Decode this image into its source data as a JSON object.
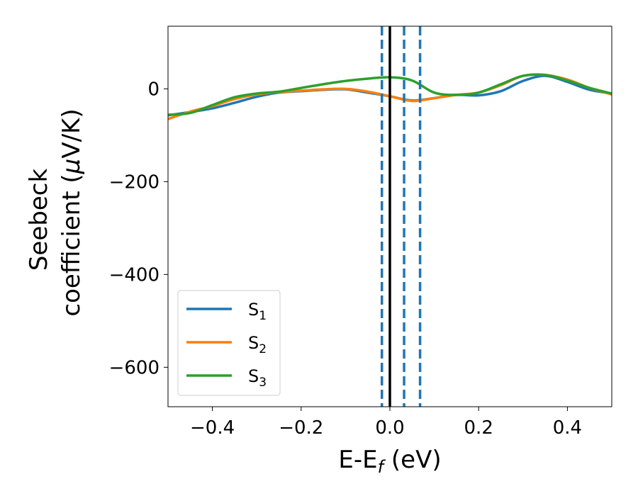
{
  "chart_data": {
    "type": "line",
    "title": "",
    "xlabel": {
      "main": "E-E",
      "sub": "f",
      "unit": " (eV)"
    },
    "ylabel": {
      "line1": "Seebeck",
      "line2": "coefficient  (",
      "mu": "μ",
      "unit": "V/K)"
    },
    "xlim": [
      -0.5,
      0.5
    ],
    "ylim": [
      -685,
      135
    ],
    "xticks": [
      {
        "value": -0.4,
        "label": "−0.4"
      },
      {
        "value": -0.2,
        "label": "−0.2"
      },
      {
        "value": 0.0,
        "label": "0.0"
      },
      {
        "value": 0.2,
        "label": "0.2"
      },
      {
        "value": 0.4,
        "label": "0.4"
      }
    ],
    "yticks": [
      {
        "value": 0,
        "label": "0"
      },
      {
        "value": -200,
        "label": "−200"
      },
      {
        "value": -400,
        "label": "−400"
      },
      {
        "value": -600,
        "label": "−600"
      }
    ],
    "grid": false,
    "legend_position": "lower-left",
    "series": [
      {
        "name": "S",
        "sub": "1",
        "color": "#1f77b4",
        "x": [
          -0.5,
          -0.45,
          -0.4,
          -0.35,
          -0.3,
          -0.25,
          -0.2,
          -0.15,
          -0.1,
          -0.05,
          0.0,
          0.05,
          0.1,
          0.15,
          0.2,
          0.25,
          0.3,
          0.35,
          0.4,
          0.45,
          0.5
        ],
        "y": [
          -57,
          -50,
          -42,
          -30,
          -17,
          -8,
          -5,
          -2,
          -1,
          -8,
          -16,
          -25,
          -20,
          -13,
          -14,
          -5,
          17,
          28,
          15,
          -2,
          -10
        ]
      },
      {
        "name": "S",
        "sub": "2",
        "color": "#ff7f0e",
        "x": [
          -0.5,
          -0.45,
          -0.4,
          -0.35,
          -0.3,
          -0.25,
          -0.2,
          -0.15,
          -0.1,
          -0.05,
          0.0,
          0.05,
          0.1,
          0.15,
          0.2,
          0.25,
          0.3,
          0.35,
          0.4,
          0.45,
          0.5
        ],
        "y": [
          -65,
          -49,
          -37,
          -22,
          -12,
          -7,
          -4,
          -1,
          0,
          -6,
          -16,
          -26,
          -20,
          -13,
          -8,
          8,
          28,
          30,
          20,
          2,
          -12
        ]
      },
      {
        "name": "S",
        "sub": "3",
        "color": "#2ca02c",
        "x": [
          -0.5,
          -0.45,
          -0.4,
          -0.35,
          -0.3,
          -0.25,
          -0.2,
          -0.15,
          -0.1,
          -0.05,
          0.0,
          0.05,
          0.1,
          0.15,
          0.2,
          0.25,
          0.3,
          0.35,
          0.4,
          0.45,
          0.5
        ],
        "y": [
          -56,
          -52,
          -35,
          -18,
          -10,
          -6,
          2,
          10,
          17,
          22,
          25,
          18,
          -8,
          -13,
          -8,
          10,
          28,
          30,
          18,
          2,
          -10
        ]
      }
    ],
    "vlines": [
      {
        "x": -0.018,
        "color": "#1f77b4",
        "style": "dashed"
      },
      {
        "x": 0.0,
        "color": "#000000",
        "style": "solid"
      },
      {
        "x": 0.032,
        "color": "#1f77b4",
        "style": "dashed"
      },
      {
        "x": 0.068,
        "color": "#1f77b4",
        "style": "dashed"
      }
    ]
  }
}
